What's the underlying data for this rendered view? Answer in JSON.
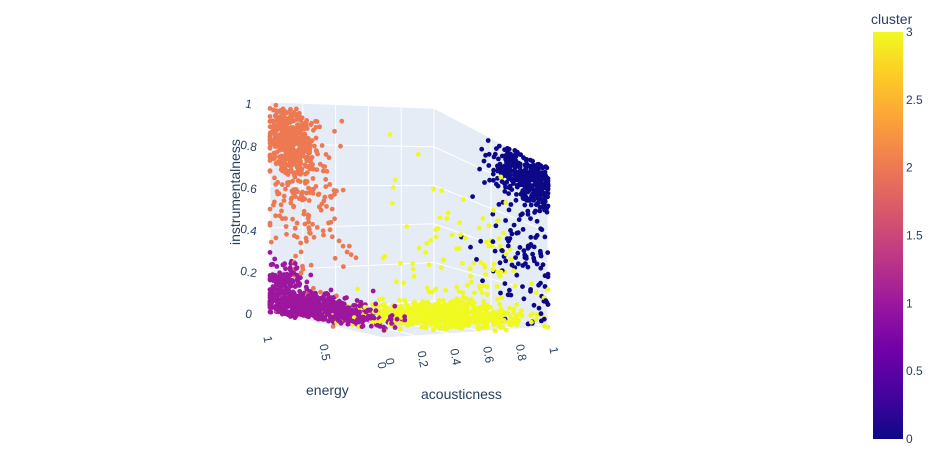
{
  "chart_data": {
    "type": "scatter",
    "subtype": "scatter3d",
    "title": "",
    "axes": {
      "x": {
        "label": "acousticness",
        "range": [
          0,
          1
        ],
        "ticks": [
          "0",
          "0.2",
          "0.4",
          "0.6",
          "0.8",
          "1"
        ]
      },
      "y": {
        "label": "energy",
        "range": [
          0,
          1
        ],
        "ticks": [
          "0",
          "0.5",
          "1"
        ]
      },
      "z": {
        "label": "instrumentalness",
        "range": [
          0,
          1
        ],
        "ticks": [
          "0",
          "0.2",
          "0.4",
          "0.6",
          "0.8",
          "1"
        ]
      }
    },
    "colorbar": {
      "title": "cluster",
      "range": [
        0,
        3
      ],
      "ticks": [
        "0",
        "0.5",
        "1",
        "1.5",
        "2",
        "2.5",
        "3"
      ],
      "colorscale": [
        "#0d0887",
        "#46039f",
        "#7201a8",
        "#9c179e",
        "#bd3786",
        "#d8576b",
        "#ed7953",
        "#fb9f3a",
        "#fdca26",
        "#f0f921"
      ]
    },
    "clusters": [
      {
        "value": 0,
        "color": "#0d0887",
        "centers": [
          {
            "acousticness": 0.98,
            "energy": 0.15,
            "instrumentalness": 0.88,
            "n": 340,
            "spread": [
              0.025,
              0.15,
              0.07
            ]
          },
          {
            "acousticness": 0.97,
            "energy": 0.2,
            "instrumentalness": 0.45,
            "n": 130,
            "spread": [
              0.03,
              0.18,
              0.25
            ]
          }
        ]
      },
      {
        "value": 1,
        "color": "#9c179e",
        "centers": [
          {
            "acousticness": 0.08,
            "energy": 0.65,
            "instrumentalness": 0.02,
            "n": 650,
            "spread": [
              0.1,
              0.22,
              0.04
            ]
          },
          {
            "acousticness": 0.03,
            "energy": 0.9,
            "instrumentalness": 0.1,
            "n": 220,
            "spread": [
              0.04,
              0.08,
              0.07
            ]
          }
        ]
      },
      {
        "value": 2,
        "color": "#ed7953",
        "centers": [
          {
            "acousticness": 0.02,
            "energy": 0.85,
            "instrumentalness": 0.85,
            "n": 420,
            "spread": [
              0.03,
              0.1,
              0.08
            ]
          },
          {
            "acousticness": 0.05,
            "energy": 0.8,
            "instrumentalness": 0.55,
            "n": 180,
            "spread": [
              0.08,
              0.15,
              0.2
            ]
          }
        ]
      },
      {
        "value": 3,
        "color": "#f0f921",
        "centers": [
          {
            "acousticness": 0.55,
            "energy": 0.35,
            "instrumentalness": 0.02,
            "n": 650,
            "spread": [
              0.22,
              0.18,
              0.03
            ]
          },
          {
            "acousticness": 0.7,
            "energy": 0.3,
            "instrumentalness": 0.3,
            "n": 140,
            "spread": [
              0.2,
              0.2,
              0.25
            ]
          }
        ]
      }
    ],
    "grid": true
  }
}
